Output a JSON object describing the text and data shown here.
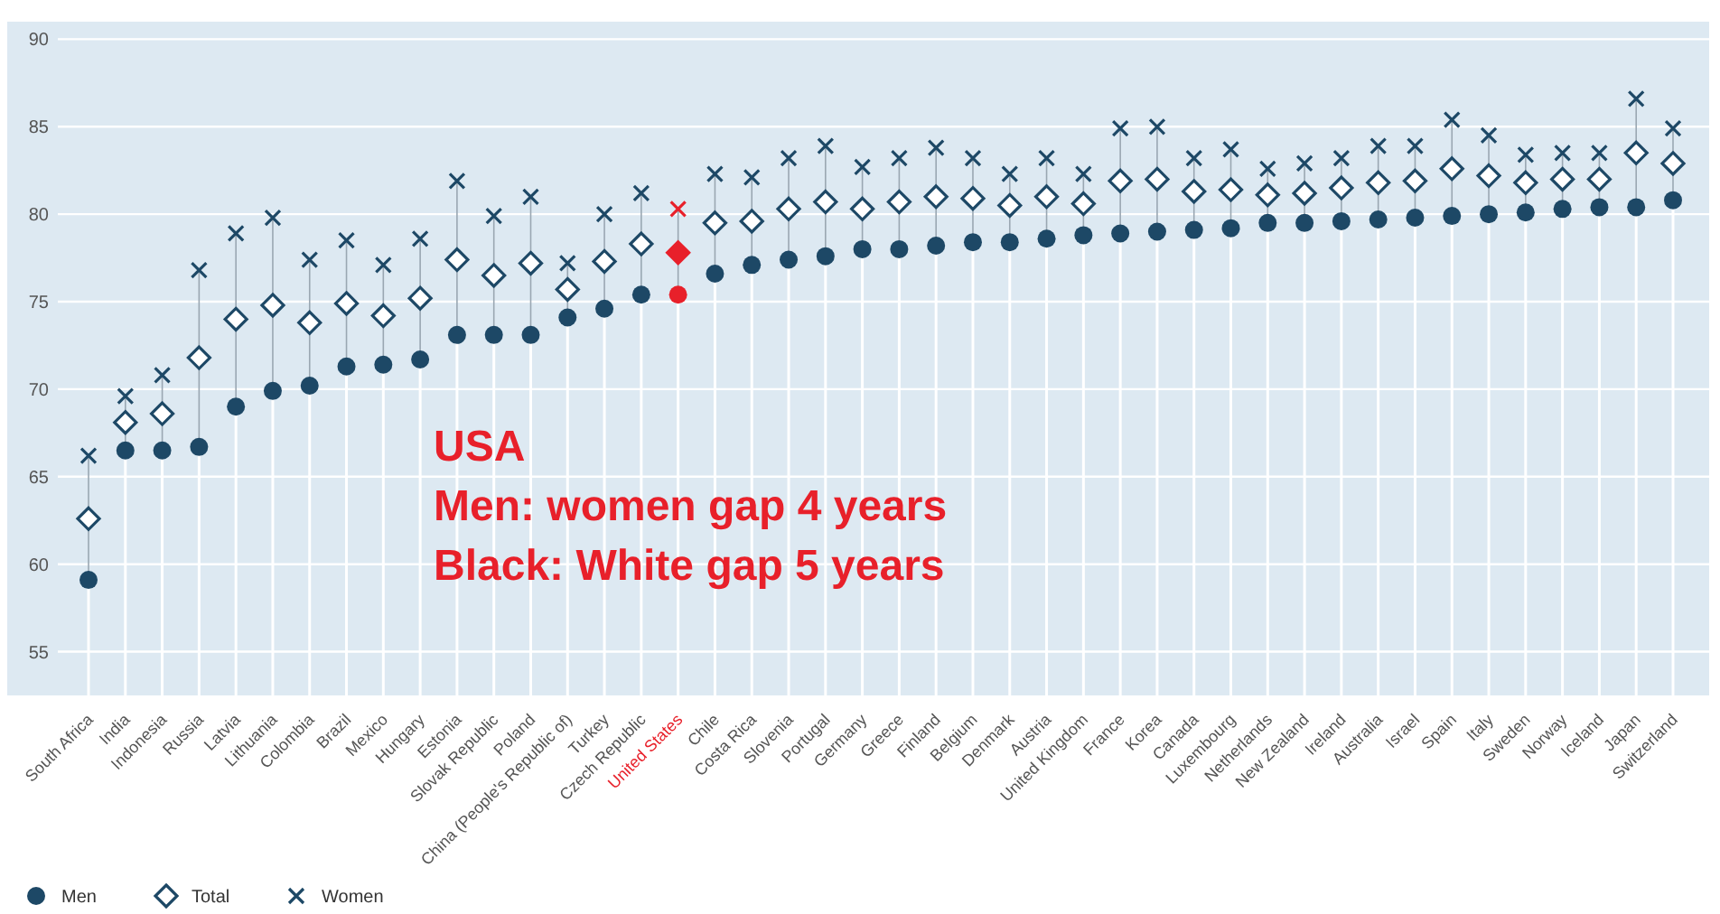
{
  "chart_data": {
    "type": "scatter",
    "categories": [
      "South Africa",
      "India",
      "Indonesia",
      "Russia",
      "Latvia",
      "Lithuania",
      "Colombia",
      "Brazil",
      "Mexico",
      "Hungary",
      "Estonia",
      "Slovak Republic",
      "Poland",
      "China (People's Republic of)",
      "Turkey",
      "Czech Republic",
      "United States",
      "Chile",
      "Costa Rica",
      "Slovenia",
      "Portugal",
      "Germany",
      "Greece",
      "Finland",
      "Belgium",
      "Denmark",
      "Austria",
      "United Kingdom",
      "France",
      "Korea",
      "Canada",
      "Luxembourg",
      "Netherlands",
      "New Zealand",
      "Ireland",
      "Australia",
      "Israel",
      "Spain",
      "Italy",
      "Sweden",
      "Norway",
      "Iceland",
      "Japan",
      "Switzerland"
    ],
    "series": [
      {
        "name": "Men",
        "marker": "circle",
        "color": "#1d4866",
        "colors": [
          "#1d4866",
          "#1d4866",
          "#1d4866",
          "#1d4866",
          "#1d4866",
          "#1d4866",
          "#1d4866",
          "#1d4866",
          "#1d4866",
          "#1d4866",
          "#1d4866",
          "#1d4866",
          "#1d4866",
          "#1d4866",
          "#1d4866",
          "#1d4866",
          "#e8202a",
          "#1d4866",
          "#1d4866",
          "#1d4866",
          "#1d4866",
          "#1d4866",
          "#1d4866",
          "#1d4866",
          "#1d4866",
          "#1d4866",
          "#1d4866",
          "#1d4866",
          "#1d4866",
          "#1d4866",
          "#1d4866",
          "#1d4866",
          "#1d4866",
          "#1d4866",
          "#1d4866",
          "#1d4866",
          "#1d4866",
          "#1d4866",
          "#1d4866",
          "#1d4866",
          "#1d4866",
          "#1d4866",
          "#1d4866",
          "#1d4866"
        ],
        "values": [
          59.1,
          66.5,
          66.5,
          66.7,
          69.0,
          69.9,
          70.2,
          71.3,
          71.4,
          71.7,
          73.1,
          73.1,
          73.1,
          74.1,
          74.6,
          75.4,
          75.4,
          76.6,
          77.1,
          77.4,
          77.6,
          78.0,
          78.0,
          78.2,
          78.4,
          78.4,
          78.6,
          78.8,
          78.9,
          79.0,
          79.1,
          79.2,
          79.5,
          79.5,
          79.6,
          79.7,
          79.8,
          79.9,
          80.0,
          80.1,
          80.3,
          80.4,
          80.4,
          80.8
        ]
      },
      {
        "name": "Total",
        "marker": "diamond",
        "color": "#1d4866",
        "colors": [
          "#1d4866",
          "#1d4866",
          "#1d4866",
          "#1d4866",
          "#1d4866",
          "#1d4866",
          "#1d4866",
          "#1d4866",
          "#1d4866",
          "#1d4866",
          "#1d4866",
          "#1d4866",
          "#1d4866",
          "#1d4866",
          "#1d4866",
          "#1d4866",
          "#e8202a",
          "#1d4866",
          "#1d4866",
          "#1d4866",
          "#1d4866",
          "#1d4866",
          "#1d4866",
          "#1d4866",
          "#1d4866",
          "#1d4866",
          "#1d4866",
          "#1d4866",
          "#1d4866",
          "#1d4866",
          "#1d4866",
          "#1d4866",
          "#1d4866",
          "#1d4866",
          "#1d4866",
          "#1d4866",
          "#1d4866",
          "#1d4866",
          "#1d4866",
          "#1d4866",
          "#1d4866",
          "#1d4866",
          "#1d4866",
          "#1d4866"
        ],
        "values": [
          62.6,
          68.1,
          68.6,
          71.8,
          74.0,
          74.8,
          73.8,
          74.9,
          74.2,
          75.2,
          77.4,
          76.5,
          77.2,
          75.7,
          77.3,
          78.3,
          77.8,
          79.5,
          79.6,
          80.3,
          80.7,
          80.3,
          80.7,
          81.0,
          80.9,
          80.5,
          81.0,
          80.6,
          81.9,
          82.0,
          81.3,
          81.4,
          81.1,
          81.2,
          81.5,
          81.8,
          81.9,
          82.6,
          82.2,
          81.8,
          82.0,
          82.0,
          83.5,
          82.9
        ]
      },
      {
        "name": "Women",
        "marker": "cross",
        "color": "#1d4866",
        "colors": [
          "#1d4866",
          "#1d4866",
          "#1d4866",
          "#1d4866",
          "#1d4866",
          "#1d4866",
          "#1d4866",
          "#1d4866",
          "#1d4866",
          "#1d4866",
          "#1d4866",
          "#1d4866",
          "#1d4866",
          "#1d4866",
          "#1d4866",
          "#1d4866",
          "#e8202a",
          "#1d4866",
          "#1d4866",
          "#1d4866",
          "#1d4866",
          "#1d4866",
          "#1d4866",
          "#1d4866",
          "#1d4866",
          "#1d4866",
          "#1d4866",
          "#1d4866",
          "#1d4866",
          "#1d4866",
          "#1d4866",
          "#1d4866",
          "#1d4866",
          "#1d4866",
          "#1d4866",
          "#1d4866",
          "#1d4866",
          "#1d4866",
          "#1d4866",
          "#1d4866",
          "#1d4866",
          "#1d4866",
          "#1d4866",
          "#1d4866"
        ],
        "values": [
          66.2,
          69.6,
          70.8,
          76.8,
          78.9,
          79.8,
          77.4,
          78.5,
          77.1,
          78.6,
          81.9,
          79.9,
          81.0,
          77.2,
          80.0,
          81.2,
          80.3,
          82.3,
          82.1,
          83.2,
          83.9,
          82.7,
          83.2,
          83.8,
          83.2,
          82.3,
          83.2,
          82.3,
          84.9,
          85.0,
          83.2,
          83.7,
          82.6,
          82.9,
          83.2,
          83.9,
          83.9,
          85.4,
          84.5,
          83.4,
          83.5,
          83.5,
          86.6,
          84.9
        ]
      }
    ],
    "ylim": [
      52.5,
      91
    ],
    "yticks": [
      55,
      60,
      65,
      70,
      75,
      80,
      85,
      90
    ],
    "grid": true,
    "legend": "bottom left",
    "annotations": [
      "USA",
      "Men: women gap 4 years",
      "Black: White gap 5 years"
    ]
  }
}
